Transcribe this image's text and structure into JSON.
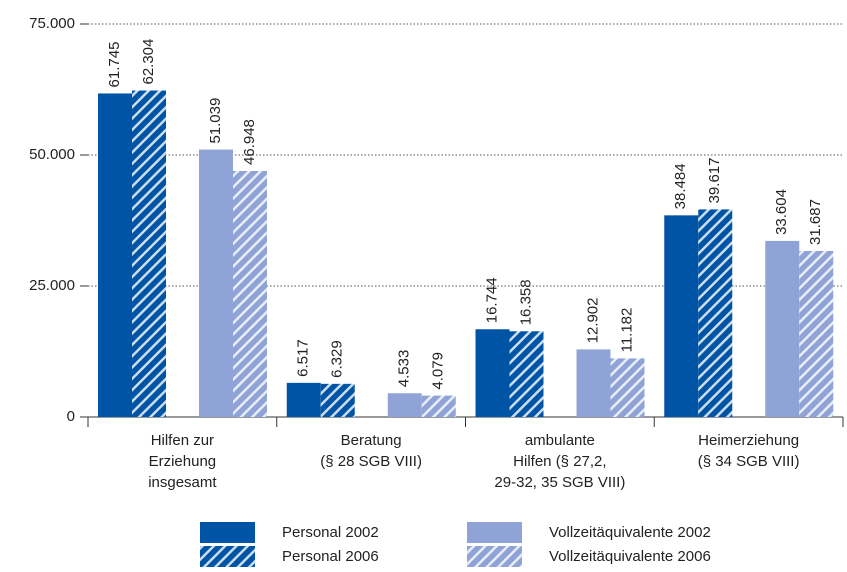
{
  "chart_data": {
    "type": "bar",
    "categories": [
      [
        "Hilfen zur",
        "Erziehung",
        "insgesamt"
      ],
      [
        "Beratung",
        "(§ 28 SGB VIII)"
      ],
      [
        "ambulante",
        "Hilfen (§ 27,2,",
        "29-32, 35 SGB VIII)"
      ],
      [
        "Heimerziehung",
        "(§ 34 SGB VIII)"
      ]
    ],
    "series": [
      {
        "name": "Personal 2002",
        "color": "#0054a6",
        "pattern": "solid",
        "values": [
          61745,
          6517,
          16744,
          38484
        ],
        "value_labels": [
          "61.745",
          "6.517",
          "16.744",
          "38.484"
        ]
      },
      {
        "name": "Personal 2006",
        "color": "#0054a6",
        "pattern": "hatch",
        "values": [
          62304,
          6329,
          16358,
          39617
        ],
        "value_labels": [
          "62.304",
          "6.329",
          "16.358",
          "39.617"
        ]
      },
      {
        "name": "Vollzeitäquivalente 2002",
        "color": "#8fa3d6",
        "pattern": "solid",
        "values": [
          51039,
          4533,
          12902,
          33604
        ],
        "value_labels": [
          "51.039",
          "4.533",
          "12.902",
          "33.604"
        ]
      },
      {
        "name": "Vollzeitäquivalente 2006",
        "color": "#8fa3d6",
        "pattern": "hatch",
        "values": [
          46948,
          4079,
          11182,
          31687
        ],
        "value_labels": [
          "46.948",
          "4.079",
          "11.182",
          "31.687"
        ]
      }
    ],
    "ylim": [
      0,
      75000
    ],
    "yticks": [
      0,
      {
        "value": 25000,
        "label": "25.000"
      },
      {
        "value": 50000,
        "label": "50.000"
      },
      {
        "value": 75000,
        "label": "75.000"
      }
    ],
    "grid": true,
    "legend": "bottom"
  }
}
